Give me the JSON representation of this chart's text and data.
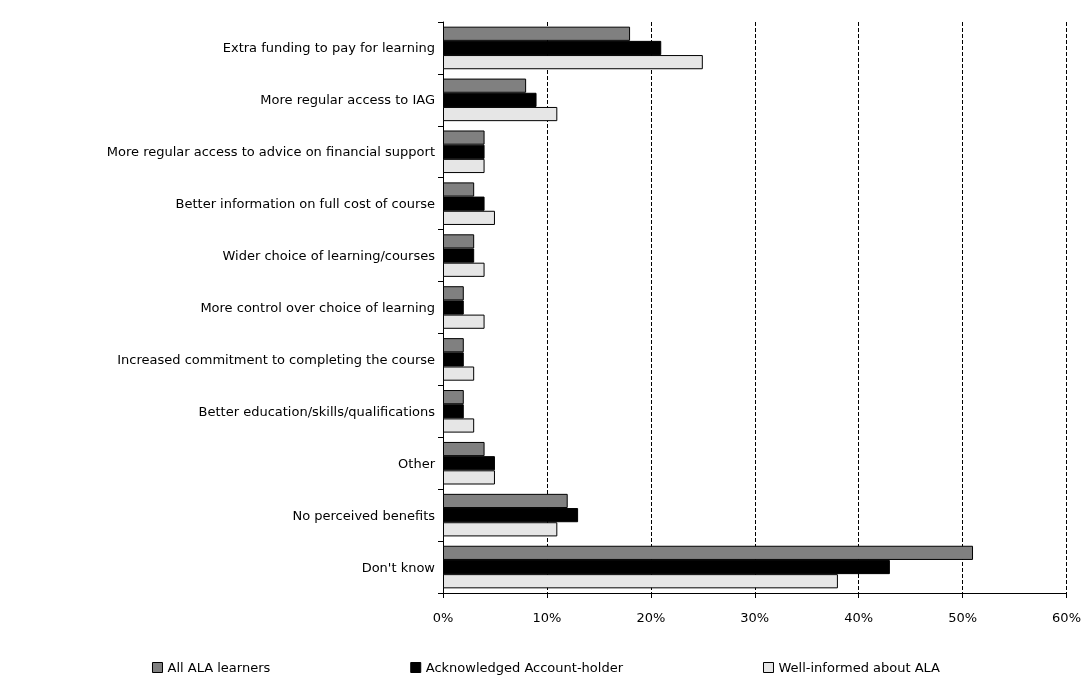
{
  "chart_data": {
    "type": "bar",
    "orientation": "horizontal",
    "categories": [
      "Extra funding to pay for learning",
      "More regular access to IAG",
      "More regular access to advice on financial support",
      "Better information on full cost of course",
      "Wider choice of learning/courses",
      "More control over choice of learning",
      "Increased commitment to completing the course",
      "Better education/skills/qualifications",
      "Other",
      "No perceived benefits",
      "Don't know"
    ],
    "series": [
      {
        "name": "All ALA learners",
        "color": "#808080",
        "values": [
          18,
          8,
          4,
          3,
          3,
          2,
          2,
          2,
          4,
          12,
          51
        ]
      },
      {
        "name": "Acknowledged Account-holder",
        "color": "#000000",
        "values": [
          21,
          9,
          4,
          4,
          3,
          2,
          2,
          2,
          5,
          13,
          43
        ]
      },
      {
        "name": "Well-informed about ALA",
        "color": "#e6e6e6",
        "values": [
          25,
          11,
          4,
          5,
          4,
          4,
          3,
          3,
          5,
          11,
          38
        ]
      }
    ],
    "xlim": [
      0,
      60
    ],
    "xticks": [
      {
        "value": 0,
        "label": "0%"
      },
      {
        "value": 10,
        "label": "10%"
      },
      {
        "value": 20,
        "label": "20%"
      },
      {
        "value": 30,
        "label": "30%"
      },
      {
        "value": 40,
        "label": "40%"
      },
      {
        "value": 50,
        "label": "50%"
      },
      {
        "value": 60,
        "label": "60%"
      }
    ],
    "grid": "x",
    "legend": "bottom"
  }
}
